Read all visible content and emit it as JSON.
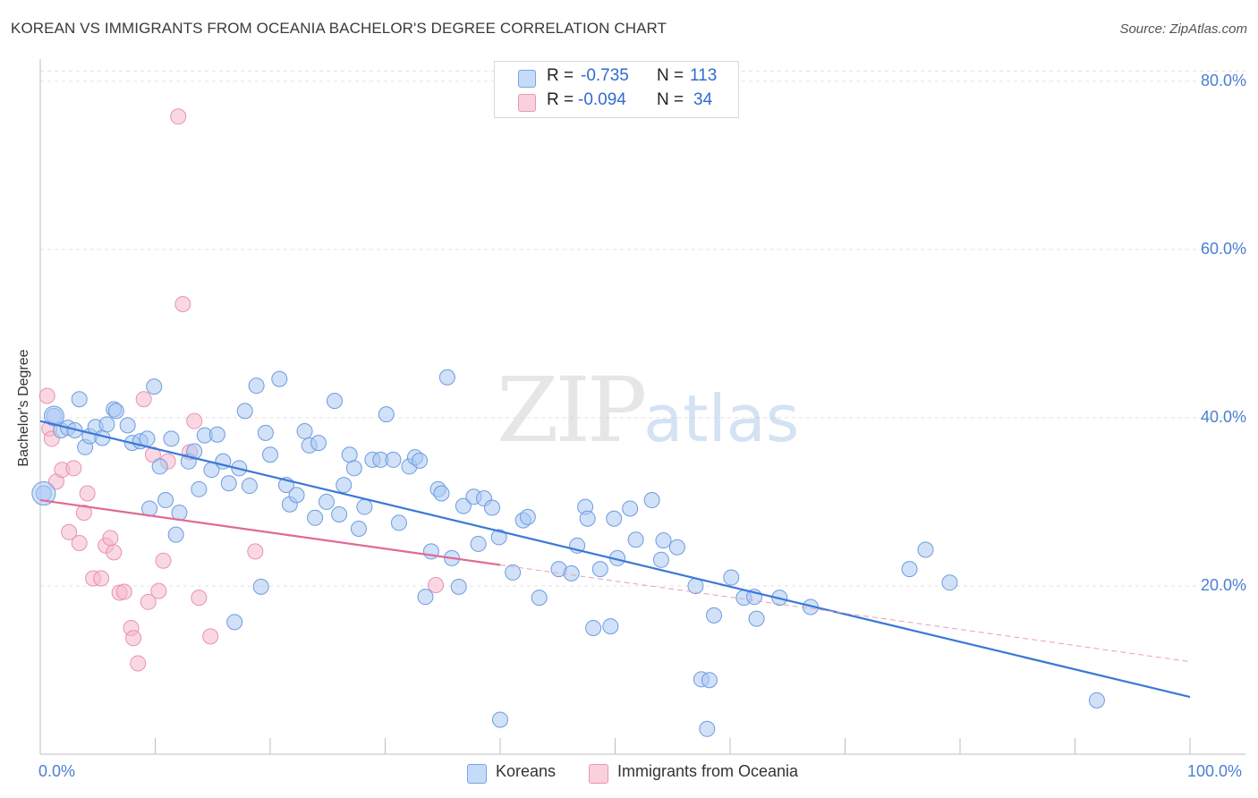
{
  "header": {
    "title": "KOREAN VS IMMIGRANTS FROM OCEANIA BACHELOR'S DEGREE CORRELATION CHART",
    "source": "Source: ZipAtlas.com"
  },
  "watermark": {
    "zip": "ZIP",
    "atlas": "atlas"
  },
  "legend": {
    "rows": [
      {
        "r_label": "R =",
        "r_value": "-0.735",
        "n_label": "N =",
        "n_value": "113",
        "color": "#a9c8f2"
      },
      {
        "r_label": "R =",
        "r_value": "-0.094",
        "n_label": "N =",
        "n_value": "34",
        "color": "#f6b8cc"
      }
    ],
    "bottom": [
      {
        "label": "Koreans",
        "color": "#a9c8f2"
      },
      {
        "label": "Immigrants from Oceania",
        "color": "#f6b8cc"
      }
    ]
  },
  "chart_data": {
    "type": "scatter",
    "title": "KOREAN VS IMMIGRANTS FROM OCEANIA BACHELOR'S DEGREE CORRELATION CHART",
    "ylabel": "Bachelor's Degree",
    "xlabel": "",
    "x_tick_labels": [
      "0.0%",
      "100.0%"
    ],
    "y_tick_labels": [
      "20.0%",
      "40.0%",
      "60.0%",
      "80.0%"
    ],
    "y_ticks": [
      20,
      40,
      60,
      80
    ],
    "xlim": [
      0,
      100
    ],
    "ylim": [
      0,
      82
    ],
    "grid": true,
    "legend_position": "top-center",
    "colors": {
      "koreans": "#3a78d6",
      "oceania": "#e06a94",
      "axis_labels": "#4a7fd4"
    },
    "series": [
      {
        "name": "Koreans",
        "color": "#3a78d6",
        "fill": "#a9c8f2",
        "trend": {
          "x": [
            0,
            100
          ],
          "y": [
            39.6,
            6.8
          ],
          "style": "solid"
        },
        "points": [
          [
            0.3,
            31.0
          ],
          [
            1.2,
            40.2
          ],
          [
            1.8,
            38.5
          ],
          [
            2.4,
            38.8
          ],
          [
            3.0,
            38.5
          ],
          [
            3.4,
            42.2
          ],
          [
            3.9,
            36.5
          ],
          [
            4.3,
            37.8
          ],
          [
            4.8,
            38.9
          ],
          [
            5.4,
            37.6
          ],
          [
            5.8,
            39.2
          ],
          [
            6.4,
            41.0
          ],
          [
            6.6,
            40.8
          ],
          [
            7.6,
            39.1
          ],
          [
            8.0,
            37.0
          ],
          [
            8.7,
            37.2
          ],
          [
            9.3,
            37.5
          ],
          [
            9.5,
            29.2
          ],
          [
            9.9,
            43.7
          ],
          [
            10.4,
            34.2
          ],
          [
            10.9,
            30.2
          ],
          [
            11.4,
            37.5
          ],
          [
            11.8,
            26.1
          ],
          [
            12.1,
            28.7
          ],
          [
            12.9,
            34.8
          ],
          [
            13.4,
            36.0
          ],
          [
            13.8,
            31.5
          ],
          [
            14.3,
            37.9
          ],
          [
            14.9,
            33.8
          ],
          [
            15.4,
            38.0
          ],
          [
            15.9,
            34.8
          ],
          [
            16.4,
            32.2
          ],
          [
            16.9,
            15.7
          ],
          [
            17.3,
            34.0
          ],
          [
            17.8,
            40.8
          ],
          [
            18.2,
            31.9
          ],
          [
            18.8,
            43.8
          ],
          [
            19.2,
            19.9
          ],
          [
            19.6,
            38.2
          ],
          [
            20.0,
            35.6
          ],
          [
            20.8,
            44.6
          ],
          [
            21.4,
            32.0
          ],
          [
            21.7,
            29.7
          ],
          [
            22.3,
            30.8
          ],
          [
            23.0,
            38.4
          ],
          [
            23.4,
            36.7
          ],
          [
            23.9,
            28.1
          ],
          [
            24.2,
            37.0
          ],
          [
            24.9,
            30.0
          ],
          [
            25.6,
            42.0
          ],
          [
            26.0,
            28.5
          ],
          [
            26.4,
            32.0
          ],
          [
            26.9,
            35.6
          ],
          [
            27.3,
            34.0
          ],
          [
            27.7,
            26.8
          ],
          [
            28.2,
            29.4
          ],
          [
            28.9,
            35.0
          ],
          [
            29.6,
            35.0
          ],
          [
            30.1,
            40.4
          ],
          [
            30.7,
            35.0
          ],
          [
            31.2,
            27.5
          ],
          [
            32.1,
            34.2
          ],
          [
            32.6,
            35.3
          ],
          [
            33.0,
            34.9
          ],
          [
            33.5,
            18.7
          ],
          [
            34.0,
            24.1
          ],
          [
            34.6,
            31.5
          ],
          [
            34.9,
            31.0
          ],
          [
            35.4,
            44.8
          ],
          [
            35.8,
            23.3
          ],
          [
            36.4,
            19.9
          ],
          [
            36.8,
            29.5
          ],
          [
            37.7,
            30.6
          ],
          [
            38.1,
            25.0
          ],
          [
            38.6,
            30.4
          ],
          [
            39.3,
            29.3
          ],
          [
            39.9,
            25.8
          ],
          [
            41.1,
            21.6
          ],
          [
            42.0,
            27.8
          ],
          [
            42.4,
            28.2
          ],
          [
            43.4,
            18.6
          ],
          [
            45.1,
            22.0
          ],
          [
            46.2,
            21.5
          ],
          [
            46.7,
            24.8
          ],
          [
            47.4,
            29.4
          ],
          [
            47.6,
            28.0
          ],
          [
            48.1,
            15.0
          ],
          [
            48.7,
            22.0
          ],
          [
            49.6,
            15.2
          ],
          [
            49.9,
            28.0
          ],
          [
            50.2,
            23.3
          ],
          [
            51.3,
            29.2
          ],
          [
            51.8,
            25.5
          ],
          [
            53.2,
            30.2
          ],
          [
            54.0,
            23.1
          ],
          [
            54.2,
            25.4
          ],
          [
            55.4,
            24.6
          ],
          [
            57.0,
            20.0
          ],
          [
            57.5,
            8.9
          ],
          [
            58.2,
            8.8
          ],
          [
            58.6,
            16.5
          ],
          [
            60.1,
            21.0
          ],
          [
            61.2,
            18.6
          ],
          [
            62.1,
            18.7
          ],
          [
            62.3,
            16.1
          ],
          [
            64.3,
            18.6
          ],
          [
            58.0,
            3.0
          ],
          [
            75.6,
            22.0
          ],
          [
            77.0,
            24.3
          ],
          [
            79.1,
            20.4
          ],
          [
            40.0,
            4.1
          ],
          [
            91.9,
            6.4
          ],
          [
            67.0,
            17.5
          ]
        ]
      },
      {
        "name": "Immigrants from Oceania",
        "color": "#e06a94",
        "fill": "#f6b8cc",
        "trend": {
          "x": [
            0,
            40
          ],
          "y": [
            30.2,
            22.5
          ],
          "style": "solid",
          "extension_x": [
            40,
            100
          ],
          "extension_y": [
            22.5,
            11.0
          ]
        },
        "points": [
          [
            0.6,
            42.6
          ],
          [
            0.8,
            38.7
          ],
          [
            1.0,
            37.5
          ],
          [
            1.4,
            32.4
          ],
          [
            1.9,
            33.8
          ],
          [
            2.5,
            26.4
          ],
          [
            2.9,
            34.0
          ],
          [
            3.4,
            25.1
          ],
          [
            3.8,
            28.7
          ],
          [
            4.1,
            31.0
          ],
          [
            4.6,
            20.9
          ],
          [
            5.3,
            20.9
          ],
          [
            5.7,
            24.8
          ],
          [
            6.1,
            25.7
          ],
          [
            6.4,
            24.0
          ],
          [
            6.9,
            19.2
          ],
          [
            7.3,
            19.3
          ],
          [
            7.9,
            15.0
          ],
          [
            8.1,
            13.8
          ],
          [
            8.5,
            10.8
          ],
          [
            9.0,
            42.2
          ],
          [
            9.4,
            18.1
          ],
          [
            9.8,
            35.6
          ],
          [
            10.3,
            19.4
          ],
          [
            10.7,
            23.0
          ],
          [
            11.1,
            34.8
          ],
          [
            12.0,
            75.8
          ],
          [
            12.4,
            53.5
          ],
          [
            13.0,
            35.9
          ],
          [
            13.4,
            39.6
          ],
          [
            13.8,
            18.6
          ],
          [
            14.8,
            14.0
          ],
          [
            18.7,
            24.1
          ],
          [
            34.4,
            20.1
          ]
        ]
      }
    ]
  }
}
